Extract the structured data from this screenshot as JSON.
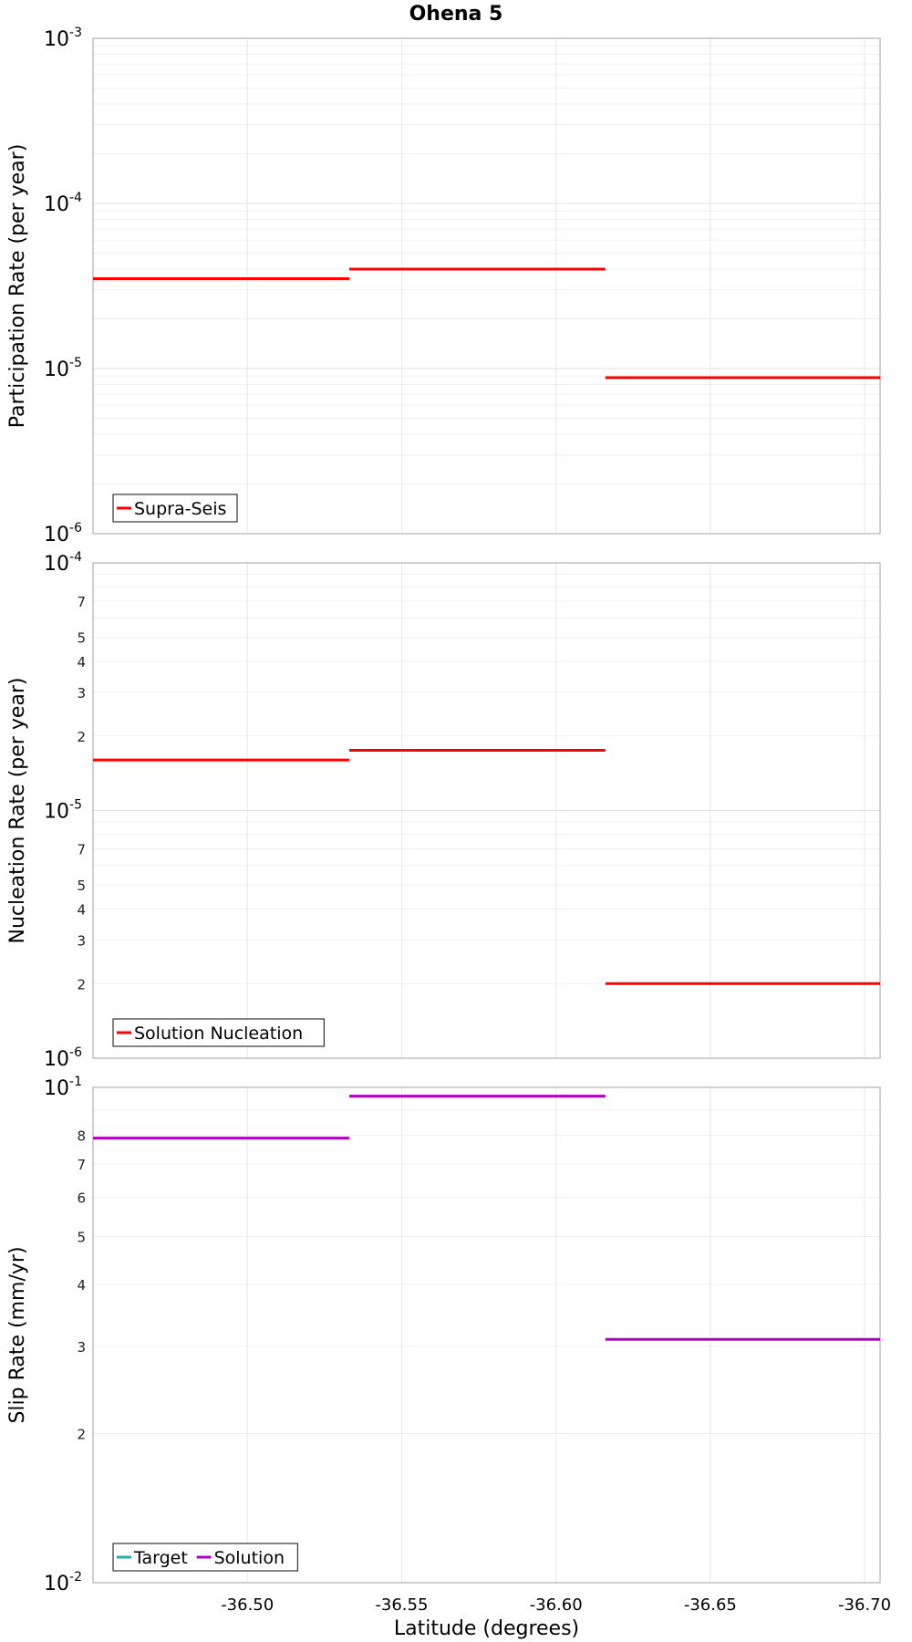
{
  "chart_data": [
    {
      "type": "line",
      "title": "Ohena 5",
      "ylabel": "Participation Rate (per year)",
      "yscale": "log",
      "ylim": [
        1e-06,
        0.001
      ],
      "ymajor": [
        {
          "base": "10",
          "exp": "-6",
          "v": 1e-06
        },
        {
          "base": "10",
          "exp": "-5",
          "v": 1e-05
        },
        {
          "base": "10",
          "exp": "-4",
          "v": 0.0001
        },
        {
          "base": "10",
          "exp": "-3",
          "v": 0.001
        }
      ],
      "yminor": [],
      "xlim": [
        -36.45,
        -36.705
      ],
      "legend": {
        "position": "bottom-left",
        "entries": [
          {
            "label": "Supra-Seis",
            "color": "#ff0000"
          }
        ]
      },
      "series": [
        {
          "name": "Supra-Seis",
          "color": "#ff0000",
          "segments": [
            {
              "x0": -36.45,
              "x1": -36.533,
              "y": 3.5e-05
            },
            {
              "x0": -36.533,
              "x1": -36.616,
              "y": 4e-05
            },
            {
              "x0": -36.616,
              "x1": -36.705,
              "y": 8.8e-06
            }
          ]
        }
      ]
    },
    {
      "type": "line",
      "ylabel": "Nucleation Rate (per year)",
      "yscale": "log",
      "ylim": [
        1e-06,
        0.0001
      ],
      "ymajor": [
        {
          "base": "10",
          "exp": "-6",
          "v": 1e-06
        },
        {
          "base": "10",
          "exp": "-5",
          "v": 1e-05
        },
        {
          "base": "10",
          "exp": "-4",
          "v": 0.0001
        }
      ],
      "yminor": [
        {
          "label": "2",
          "v": 2e-06
        },
        {
          "label": "3",
          "v": 3e-06
        },
        {
          "label": "4",
          "v": 4e-06
        },
        {
          "label": "5",
          "v": 5e-06
        },
        {
          "label": "7",
          "v": 7e-06
        },
        {
          "label": "2",
          "v": 2e-05
        },
        {
          "label": "3",
          "v": 3e-05
        },
        {
          "label": "4",
          "v": 4e-05
        },
        {
          "label": "5",
          "v": 5e-05
        },
        {
          "label": "7",
          "v": 7e-05
        }
      ],
      "xlim": [
        -36.45,
        -36.705
      ],
      "legend": {
        "position": "bottom-left",
        "entries": [
          {
            "label": "Solution Nucleation",
            "color": "#ff0000"
          }
        ]
      },
      "series": [
        {
          "name": "Solution Nucleation",
          "color": "#ff0000",
          "segments": [
            {
              "x0": -36.45,
              "x1": -36.533,
              "y": 1.6e-05
            },
            {
              "x0": -36.533,
              "x1": -36.616,
              "y": 1.75e-05
            },
            {
              "x0": -36.616,
              "x1": -36.705,
              "y": 2e-06
            }
          ]
        }
      ]
    },
    {
      "type": "line",
      "ylabel": "Slip Rate (mm/yr)",
      "xlabel": "Latitude (degrees)",
      "yscale": "log",
      "ylim": [
        0.01,
        0.1
      ],
      "ymajor": [
        {
          "base": "10",
          "exp": "-2",
          "v": 0.01
        },
        {
          "base": "10",
          "exp": "-1",
          "v": 0.1
        }
      ],
      "yminor": [
        {
          "label": "2",
          "v": 0.02
        },
        {
          "label": "3",
          "v": 0.03
        },
        {
          "label": "4",
          "v": 0.04
        },
        {
          "label": "5",
          "v": 0.05
        },
        {
          "label": "6",
          "v": 0.06
        },
        {
          "label": "7",
          "v": 0.07
        },
        {
          "label": "8",
          "v": 0.08
        }
      ],
      "xlim": [
        -36.45,
        -36.705
      ],
      "xticks": [
        {
          "label": "-36.50",
          "v": -36.5
        },
        {
          "label": "-36.55",
          "v": -36.55
        },
        {
          "label": "-36.60",
          "v": -36.6
        },
        {
          "label": "-36.65",
          "v": -36.65
        },
        {
          "label": "-36.70",
          "v": -36.7
        }
      ],
      "legend": {
        "position": "bottom-left",
        "entries": [
          {
            "label": "Target",
            "color": "#20b2aa"
          },
          {
            "label": "Solution",
            "color": "#b000c0"
          }
        ]
      },
      "series": [
        {
          "name": "Solution",
          "color": "#b000c0",
          "segments": [
            {
              "x0": -36.45,
              "x1": -36.533,
              "y": 0.079
            },
            {
              "x0": -36.533,
              "x1": -36.616,
              "y": 0.096
            },
            {
              "x0": -36.616,
              "x1": -36.705,
              "y": 0.031
            }
          ]
        }
      ]
    }
  ]
}
